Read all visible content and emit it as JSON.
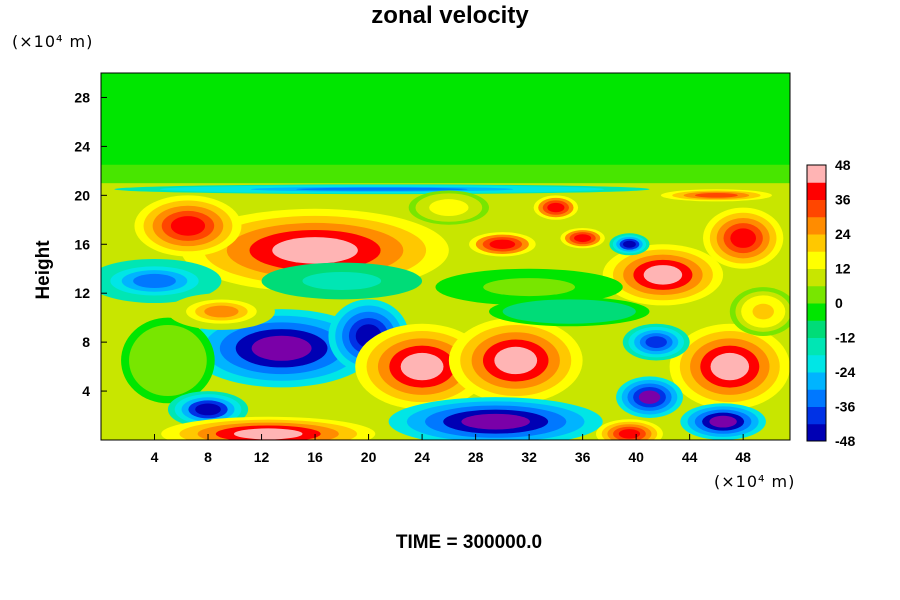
{
  "chart_data": {
    "type": "heatmap",
    "title": "zonal velocity",
    "xlabel": "",
    "ylabel": "Height",
    "x_unit": "(×10⁴ m)",
    "y_unit": "(×10⁴ m)",
    "xlim": [
      0,
      51.5
    ],
    "ylim": [
      0,
      30
    ],
    "x_ticks": [
      4,
      8,
      12,
      16,
      20,
      24,
      28,
      32,
      36,
      40,
      44,
      48
    ],
    "y_ticks": [
      4,
      8,
      12,
      16,
      20,
      24,
      28
    ],
    "colorbar": {
      "min": -48,
      "max": 48,
      "step": 6,
      "tick_labels": [
        48,
        36,
        24,
        12,
        0,
        -12,
        -24,
        -36,
        -48
      ],
      "colors_low_to_high": [
        "#7a00a8",
        "#0000b4",
        "#0032e6",
        "#0078ff",
        "#00b4ff",
        "#00e6e6",
        "#00e6b4",
        "#00dc78",
        "#00e600",
        "#78e600",
        "#c8e600",
        "#ffff00",
        "#ffc800",
        "#ff8c00",
        "#ff4600",
        "#ff0000",
        "#ffb4b4"
      ]
    },
    "blobs": [
      {
        "x": 16,
        "y": 15.5,
        "rx": 10,
        "ry": 3.4,
        "value": 48
      },
      {
        "x": 6.5,
        "y": 17.5,
        "rx": 4,
        "ry": 2.5,
        "value": 44
      },
      {
        "x": 13.5,
        "y": 7.5,
        "rx": 7,
        "ry": 3.2,
        "value": -48
      },
      {
        "x": 20,
        "y": 8.5,
        "rx": 3,
        "ry": 3,
        "value": -44
      },
      {
        "x": 5,
        "y": 6.5,
        "rx": 3.5,
        "ry": 3.5,
        "value": 6
      },
      {
        "x": 24,
        "y": 6,
        "rx": 5,
        "ry": 3.5,
        "value": 48
      },
      {
        "x": 31,
        "y": 6.5,
        "rx": 5,
        "ry": 3.5,
        "value": 48
      },
      {
        "x": 47,
        "y": 6,
        "rx": 4.5,
        "ry": 3.5,
        "value": 48
      },
      {
        "x": 29.5,
        "y": 1.5,
        "rx": 8,
        "ry": 2,
        "value": -48
      },
      {
        "x": 8,
        "y": 2.5,
        "rx": 3,
        "ry": 1.5,
        "value": -40
      },
      {
        "x": 41,
        "y": 3.5,
        "rx": 2.5,
        "ry": 1.7,
        "value": -46
      },
      {
        "x": 46.5,
        "y": 1.5,
        "rx": 3.2,
        "ry": 1.5,
        "value": -48
      },
      {
        "x": 12.5,
        "y": 0.5,
        "rx": 8,
        "ry": 1.4,
        "value": 48
      },
      {
        "x": 39.5,
        "y": 0.5,
        "rx": 2.5,
        "ry": 1.2,
        "value": 44
      },
      {
        "x": 42,
        "y": 13.5,
        "rx": 4.5,
        "ry": 2.5,
        "value": 48
      },
      {
        "x": 48,
        "y": 16.5,
        "rx": 3,
        "ry": 2.5,
        "value": 44
      },
      {
        "x": 30,
        "y": 16,
        "rx": 3,
        "ry": 1.2,
        "value": 40
      },
      {
        "x": 36,
        "y": 16.5,
        "rx": 2,
        "ry": 1,
        "value": 40
      },
      {
        "x": 34,
        "y": 19,
        "rx": 2,
        "ry": 1.2,
        "value": 40
      },
      {
        "x": 46,
        "y": 20,
        "rx": 5,
        "ry": 0.6,
        "value": 36
      },
      {
        "x": 4,
        "y": 13,
        "rx": 5,
        "ry": 1.8,
        "value": -28
      },
      {
        "x": 18,
        "y": 13,
        "rx": 6,
        "ry": 1.5,
        "value": -12
      },
      {
        "x": 32,
        "y": 12.5,
        "rx": 7,
        "ry": 1.5,
        "value": 4
      },
      {
        "x": 41.5,
        "y": 8,
        "rx": 2.5,
        "ry": 1.5,
        "value": -36
      },
      {
        "x": 39.5,
        "y": 16,
        "rx": 1.5,
        "ry": 0.9,
        "value": -40
      },
      {
        "x": 21,
        "y": 20.5,
        "rx": 20,
        "ry": 0.4,
        "value": -30
      },
      {
        "x": 35,
        "y": 10.5,
        "rx": 6,
        "ry": 1.2,
        "value": -6
      },
      {
        "x": 9,
        "y": 10.5,
        "rx": 4,
        "ry": 1.5,
        "value": 28
      },
      {
        "x": 26,
        "y": 19,
        "rx": 3,
        "ry": 1.4,
        "value": 20
      },
      {
        "x": 49.5,
        "y": 10.5,
        "rx": 2.5,
        "ry": 2,
        "value": 24
      }
    ]
  },
  "footer": {
    "time_label": "TIME = 300000.0"
  }
}
